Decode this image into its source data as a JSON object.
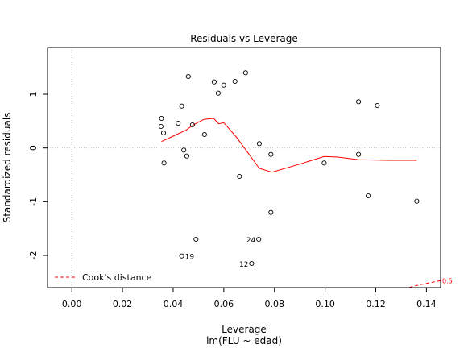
{
  "chart_data": {
    "type": "scatter",
    "title": "Residuals vs Leverage",
    "xlabel": "Leverage",
    "sublabel": "lm(FLU ~ edad)",
    "ylabel": "Standardized residuals",
    "xlim": [
      -0.0096,
      0.1456
    ],
    "ylim": [
      -2.6,
      1.87
    ],
    "xticks": [
      0.0,
      0.02,
      0.04,
      0.06,
      0.08,
      0.1,
      0.12,
      0.14
    ],
    "xtick_labels": [
      "0.00",
      "0.02",
      "0.04",
      "0.06",
      "0.08",
      "0.10",
      "0.12",
      "0.14"
    ],
    "yticks": [
      -2,
      -1,
      0,
      1
    ],
    "ytick_labels": [
      "-2",
      "-1",
      "0",
      "1"
    ],
    "grid": false,
    "reference_lines": {
      "x": 0,
      "y": 0,
      "color": "#bebebe",
      "style": "dotted"
    },
    "points": [
      {
        "x": 0.0354,
        "y": 0.55
      },
      {
        "x": 0.0352,
        "y": 0.4
      },
      {
        "x": 0.0362,
        "y": 0.28
      },
      {
        "x": 0.0364,
        "y": -0.28
      },
      {
        "x": 0.042,
        "y": 0.46
      },
      {
        "x": 0.0434,
        "y": 0.78
      },
      {
        "x": 0.0442,
        "y": -0.04
      },
      {
        "x": 0.0454,
        "y": -0.15
      },
      {
        "x": 0.046,
        "y": 1.33
      },
      {
        "x": 0.0476,
        "y": 0.43
      },
      {
        "x": 0.0524,
        "y": 0.25
      },
      {
        "x": 0.0562,
        "y": 1.23
      },
      {
        "x": 0.0578,
        "y": 1.02
      },
      {
        "x": 0.06,
        "y": 1.17
      },
      {
        "x": 0.0644,
        "y": 1.24
      },
      {
        "x": 0.0686,
        "y": 1.4
      },
      {
        "x": 0.0662,
        "y": -0.53
      },
      {
        "x": 0.074,
        "y": 0.08
      },
      {
        "x": 0.0786,
        "y": -0.12
      },
      {
        "x": 0.0786,
        "y": -1.2
      },
      {
        "x": 0.049,
        "y": -1.7
      },
      {
        "x": 0.0434,
        "y": -2.01
      },
      {
        "x": 0.0738,
        "y": -1.7
      },
      {
        "x": 0.071,
        "y": -2.15
      },
      {
        "x": 0.0996,
        "y": -0.28
      },
      {
        "x": 0.1132,
        "y": 0.86
      },
      {
        "x": 0.1132,
        "y": -0.12
      },
      {
        "x": 0.117,
        "y": -0.89
      },
      {
        "x": 0.1206,
        "y": 0.79
      },
      {
        "x": 0.1362,
        "y": -0.99
      }
    ],
    "point_labels": [
      {
        "text": "19",
        "x": 0.0434,
        "y": -2.01
      },
      {
        "text": "24",
        "x": 0.0738,
        "y": -1.7
      },
      {
        "text": "12",
        "x": 0.071,
        "y": -2.15
      }
    ],
    "smooth_line": {
      "color": "#ff0000",
      "x": [
        0.0354,
        0.04,
        0.045,
        0.048,
        0.052,
        0.056,
        0.058,
        0.06,
        0.065,
        0.07,
        0.074,
        0.079,
        0.09,
        0.0996,
        0.105,
        0.1132,
        0.125,
        0.1362
      ],
      "y": [
        0.12,
        0.22,
        0.33,
        0.43,
        0.53,
        0.55,
        0.45,
        0.47,
        0.2,
        -0.12,
        -0.38,
        -0.45,
        -0.3,
        -0.16,
        -0.17,
        -0.22,
        -0.23,
        -0.23
      ]
    },
    "cooks_contours": [
      {
        "label": "0.5",
        "color": "#ff0000",
        "style": "dashed",
        "x": [
          0.1312,
          0.1362,
          0.14,
          0.1456
        ],
        "y": [
          -2.62,
          -2.56,
          -2.52,
          -2.47
        ]
      }
    ],
    "legend": {
      "position": "bottom-left",
      "entries": [
        {
          "label": "Cook's distance",
          "color": "#ff0000",
          "style": "dashed"
        }
      ]
    }
  }
}
